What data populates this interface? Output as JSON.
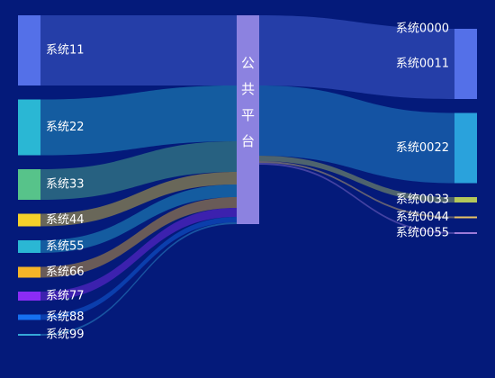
{
  "chart_data": {
    "type": "sankey",
    "hub": {
      "name": "公共平台",
      "color": "#8c82e0"
    },
    "sources": [
      {
        "name": "系统11",
        "value": 78,
        "color": "#5470e8"
      },
      {
        "name": "系统22",
        "value": 62,
        "color": "#2ab7d4"
      },
      {
        "name": "系统33",
        "value": 34,
        "color": "#57c38a"
      },
      {
        "name": "系统44",
        "value": 14,
        "color": "#f5d12a"
      },
      {
        "name": "系统55",
        "value": 14,
        "color": "#2ab7d4"
      },
      {
        "name": "系统66",
        "value": 12,
        "color": "#f5b528"
      },
      {
        "name": "系统77",
        "value": 10,
        "color": "#8b2cf5"
      },
      {
        "name": "系统88",
        "value": 6,
        "color": "#1670f0"
      },
      {
        "name": "系统99",
        "value": 2,
        "color": "#35a8d8"
      }
    ],
    "targets": [
      {
        "name": "系统0000",
        "value": 0,
        "color": "#5470e8"
      },
      {
        "name": "系统0011",
        "value": 78,
        "color": "#5470e8"
      },
      {
        "name": "系统0022",
        "value": 78,
        "color": "#2aa2dc"
      },
      {
        "name": "系统0033",
        "value": 6,
        "color": "#b4c85a"
      },
      {
        "name": "系统0044",
        "value": 2,
        "color": "#e8c267"
      },
      {
        "name": "系统0055",
        "value": 2,
        "color": "#9c7ad8"
      }
    ]
  }
}
